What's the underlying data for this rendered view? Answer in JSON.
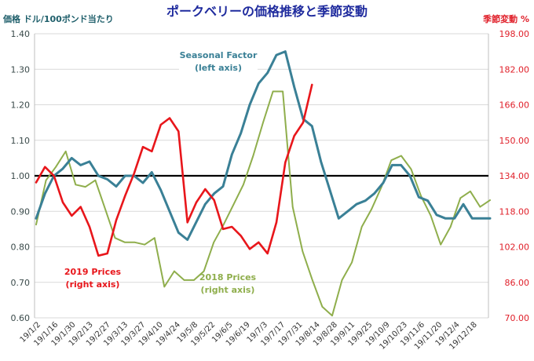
{
  "chart_data": {
    "type": "line",
    "title": "ポークベリーの価格推移と季節変動",
    "left_axis_label": "価格 ドル/100ポンド当たり",
    "right_axis_label": "季節変動 %",
    "colors": {
      "title": "#1f2b9e",
      "left_axis_label": "#1f5f6b",
      "right_axis": "#e0202a",
      "seasonal": "#3a8096",
      "prices_2019": "#e8161b",
      "prices_2018": "#8fae4c",
      "baseline": "#000000",
      "grid": "#d9d9d9",
      "left_ticks": "#3a4a4a"
    },
    "left_axis": {
      "min": 0.6,
      "max": 1.4,
      "ticks": [
        "1.40",
        "1.30",
        "1.20",
        "1.10",
        "1.00",
        "0.90",
        "0.80",
        "0.70",
        "0.60"
      ]
    },
    "right_axis": {
      "min": 70,
      "max": 198,
      "ticks": [
        "198.00",
        "182.00",
        "166.00",
        "150.00",
        "134.00",
        "118.00",
        "102.00",
        "86.00",
        "70.00"
      ]
    },
    "x_labels": [
      "19/1/2",
      "19/1/16",
      "19/1/30",
      "19/2/13",
      "19/2/27",
      "19/3/13",
      "19/3/27",
      "19/4/10",
      "19/4/24",
      "19/5/8",
      "19/5/22",
      "19/6/5",
      "19/6/19",
      "19/7/3",
      "19/7/17",
      "19/7/31",
      "19/8/14",
      "19/8/28",
      "19/9/11",
      "19/9/25",
      "19/10/9",
      "19/10/23",
      "19/11/6",
      "19/11/20",
      "19/12/4",
      "19/12/18"
    ],
    "baseline_value": 1.0,
    "series": [
      {
        "name": "Seasonal Factor",
        "axis": "left",
        "annotation": [
          "Seasonal Factor",
          "(left axis)"
        ],
        "values": [
          0.88,
          0.95,
          1.0,
          1.02,
          1.05,
          1.03,
          1.04,
          1.0,
          0.99,
          0.97,
          1.0,
          1.0,
          0.98,
          1.01,
          0.96,
          0.9,
          0.84,
          0.82,
          0.87,
          0.92,
          0.95,
          0.97,
          1.06,
          1.12,
          1.2,
          1.26,
          1.29,
          1.34,
          1.35,
          1.25,
          1.16,
          1.14,
          1.04,
          0.96,
          0.88,
          0.9,
          0.92,
          0.93,
          0.95,
          0.98,
          1.03,
          1.03,
          1.0,
          0.94,
          0.93,
          0.89,
          0.88,
          0.88,
          0.92,
          0.88,
          0.88,
          0.88
        ]
      },
      {
        "name": "2019 Prices",
        "axis": "right",
        "annotation": [
          "2019 Prices",
          "(right axis)"
        ],
        "values": [
          131,
          138,
          134,
          122,
          116,
          120,
          111,
          98,
          99,
          114,
          125,
          135,
          147,
          145,
          157,
          160,
          154,
          113,
          122,
          128,
          123,
          110,
          111,
          107,
          101,
          104,
          99,
          113,
          140,
          152,
          158,
          175
        ]
      },
      {
        "name": "2018 Prices",
        "axis": "right",
        "annotation": [
          "2018 Prices",
          "(right axis)"
        ],
        "values": [
          112,
          132,
          138,
          145,
          130,
          129,
          132,
          119,
          106,
          104,
          104,
          103,
          106,
          84,
          91,
          87,
          87,
          91,
          104,
          112,
          121,
          130,
          143,
          158,
          172,
          172,
          120,
          100,
          87,
          75,
          71,
          87,
          95,
          111,
          119,
          129,
          141,
          143,
          137,
          125,
          116,
          103,
          111,
          124,
          127,
          120,
          123
        ]
      }
    ]
  }
}
